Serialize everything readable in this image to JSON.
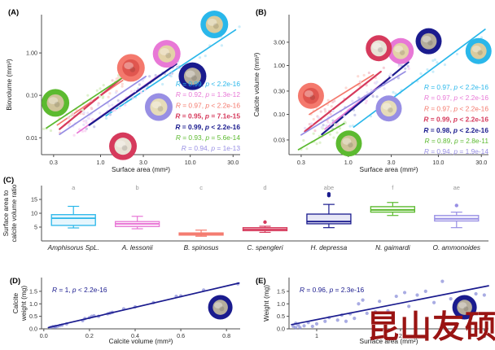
{
  "watermark": {
    "text": "昆山友硕",
    "color": "#9a1413"
  },
  "species": [
    {
      "key": "amphisorus",
      "label": "Amphisorus SpL.",
      "letter": "a",
      "color": "#2ab7ea",
      "light": "#c8ecfa",
      "inner": "#d9cb9e"
    },
    {
      "key": "lessonii",
      "label": "A. lessonii",
      "letter": "b",
      "color": "#e878d6",
      "light": "#fad9f3",
      "inner": "#e3d2a8"
    },
    {
      "key": "spinosus",
      "label": "B. spinosus",
      "letter": "c",
      "color": "#f4796d",
      "light": "#fdd9d4",
      "inner": "#e0564f"
    },
    {
      "key": "spengleri",
      "label": "C. spengleri",
      "letter": "d",
      "color": "#d63a5c",
      "light": "#f6ccd6",
      "inner": "#e8e2d5"
    },
    {
      "key": "depressa",
      "label": "H. depressa",
      "letter": "abe",
      "color": "#1a1b8e",
      "light": "#c9c9ea",
      "inner": "#b5ad9c"
    },
    {
      "key": "gaimardi",
      "label": "N. gaimardi",
      "letter": "f",
      "color": "#5cba30",
      "light": "#ddf0cb",
      "inner": "#cfc39a"
    },
    {
      "key": "ammonoides",
      "label": "O. ammonoides",
      "letter": "ae",
      "color": "#988fe4",
      "light": "#e7e3fa",
      "inner": "#e6dcb8"
    }
  ],
  "chart_data": [
    {
      "id": "A",
      "tag": "(A)",
      "type": "scatter",
      "xscale": "log",
      "yscale": "log",
      "xlabel": "Surface area (mm²)",
      "ylabel_lines": [
        "Biovolume (mm³)"
      ],
      "xticks": [
        "0.3",
        "1.0",
        "3.0",
        "10.0",
        "30.0"
      ],
      "yticks": [
        "0.01",
        "0.10",
        "1.00"
      ],
      "xlim": [
        0.22,
        36
      ],
      "ylim": [
        0.004,
        8
      ],
      "grid": false,
      "legend": "stats right side",
      "series": [
        {
          "species": "amphisorus",
          "r_label": "R = 0.99",
          "p_label": "p < 2.2e-16",
          "bold": false,
          "line": [
            [
              1.15,
              0.033
            ],
            [
              32,
              3.5
            ]
          ],
          "n": 22,
          "icon": [
            0.87,
            0.07
          ]
        },
        {
          "species": "lessonii",
          "r_label": "R = 0.92",
          "p_label": "p = 1.3e-12",
          "bold": false,
          "line": [
            [
              0.55,
              0.013
            ],
            [
              4.5,
              0.3
            ]
          ],
          "n": 20,
          "icon": [
            0.63,
            0.28
          ]
        },
        {
          "species": "spinosus",
          "r_label": "R = 0.97",
          "p_label": "p < 2.2e-16",
          "bold": false,
          "line": [
            [
              0.33,
              0.02
            ],
            [
              1.9,
              0.25
            ]
          ],
          "n": 18,
          "icon": [
            0.45,
            0.38
          ]
        },
        {
          "species": "spengleri",
          "r_label": "R = 0.95",
          "p_label": "p = 7.1e-15",
          "bold": true,
          "line": [
            [
              0.35,
              0.016
            ],
            [
              2.3,
              0.42
            ]
          ],
          "n": 18,
          "icon": [
            0.41,
            0.94
          ]
        },
        {
          "species": "depressa",
          "r_label": "R = 0.99",
          "p_label": "p < 2.2e-16",
          "bold": true,
          "line": [
            [
              0.75,
              0.02
            ],
            [
              7,
              0.55
            ]
          ],
          "n": 20,
          "icon": [
            0.76,
            0.44
          ]
        },
        {
          "species": "gaimardi",
          "r_label": "R = 0.93",
          "p_label": "p = 5.6e-14",
          "bold": false,
          "line": [
            [
              0.25,
              0.017
            ],
            [
              1.7,
              0.25
            ]
          ],
          "n": 18,
          "icon": [
            0.07,
            0.63
          ]
        },
        {
          "species": "ammonoides",
          "r_label": "R = 0.94",
          "p_label": "p = 1e-13",
          "bold": false,
          "line": [
            [
              0.35,
              0.012
            ],
            [
              3.2,
              0.28
            ]
          ],
          "n": 20,
          "icon": [
            0.59,
            0.66
          ]
        }
      ]
    },
    {
      "id": "B",
      "tag": "(B)",
      "type": "scatter",
      "xscale": "log",
      "yscale": "log",
      "xlabel": "Surface area (mm²)",
      "ylabel_lines": [
        "Calcite volume (mm³)"
      ],
      "xticks": [
        "0.3",
        "1.0",
        "3.0",
        "10.0",
        "30.0"
      ],
      "yticks": [
        "0.03",
        "0.10",
        "0.30",
        "1.00",
        "3.00"
      ],
      "xlim": [
        0.22,
        36
      ],
      "ylim": [
        0.015,
        11
      ],
      "grid": false,
      "legend": "stats right side",
      "series": [
        {
          "species": "amphisorus",
          "r_label": "R = 0.97",
          "p_label": "p < 2.2e-16",
          "bold": false,
          "line": [
            [
              1.15,
              0.055
            ],
            [
              33,
              5.5
            ]
          ],
          "n": 22,
          "icon": [
            0.95,
            0.26
          ]
        },
        {
          "species": "lessonii",
          "r_label": "R = 0.97",
          "p_label": "p < 2.2e-16",
          "bold": false,
          "line": [
            [
              0.55,
              0.05
            ],
            [
              4.5,
              1.1
            ]
          ],
          "n": 20,
          "icon": [
            0.56,
            0.26
          ]
        },
        {
          "species": "spinosus",
          "r_label": "R = 0.97",
          "p_label": "p < 2.2e-16",
          "bold": false,
          "line": [
            [
              0.37,
              0.1
            ],
            [
              1.9,
              0.65
            ]
          ],
          "n": 18,
          "icon": [
            0.11,
            0.58
          ]
        },
        {
          "species": "spengleri",
          "r_label": "R = 0.99",
          "p_label": "p < 2.2e-16",
          "bold": true,
          "line": [
            [
              0.33,
              0.045
            ],
            [
              2.3,
              0.75
            ]
          ],
          "n": 18,
          "icon": [
            0.45,
            0.24
          ]
        },
        {
          "species": "depressa",
          "r_label": "R = 0.98",
          "p_label": "p < 2.2e-16",
          "bold": true,
          "line": [
            [
              0.51,
              0.039
            ],
            [
              4.65,
              1.17
            ]
          ],
          "n": 20,
          "icon": [
            0.7,
            0.19
          ]
        },
        {
          "species": "gaimardi",
          "r_label": "R = 0.89",
          "p_label": "p = 2.8e-11",
          "bold": false,
          "line": [
            [
              0.28,
              0.019
            ],
            [
              0.9,
              0.065
            ]
          ],
          "n": 18,
          "icon": [
            0.3,
            0.92
          ]
        },
        {
          "species": "ammonoides",
          "r_label": "R = 0.94",
          "p_label": "p = 1.9e-14",
          "bold": false,
          "line": [
            [
              0.3,
              0.038
            ],
            [
              4.3,
              0.75
            ]
          ],
          "n": 20,
          "icon": [
            0.5,
            0.67
          ]
        }
      ]
    },
    {
      "id": "C",
      "tag": "(C)",
      "type": "boxplot",
      "ylabel_lines": [
        "Surface area to",
        "calcite volume ratio"
      ],
      "yticks": [
        5,
        10,
        15
      ],
      "ylim": [
        0,
        20
      ],
      "grid": false,
      "boxes": [
        {
          "species": "amphisorus",
          "whislo": 4.7,
          "q1": 5.6,
          "med": 8.2,
          "q3": 9.5,
          "whishi": 12.5,
          "outliers": []
        },
        {
          "species": "lessonii",
          "whislo": 4.4,
          "q1": 5.2,
          "med": 6.2,
          "q3": 7.0,
          "whishi": 8.9,
          "outliers": []
        },
        {
          "species": "spinosus",
          "whislo": 1.7,
          "q1": 2.1,
          "med": 2.5,
          "q3": 2.9,
          "whishi": 3.9,
          "outliers": []
        },
        {
          "species": "spengleri",
          "whislo": 3.1,
          "q1": 3.7,
          "med": 4.2,
          "q3": 4.8,
          "whishi": 5.3,
          "outliers": [
            6.8
          ]
        },
        {
          "species": "depressa",
          "whislo": 4.8,
          "q1": 6.2,
          "med": 7.0,
          "q3": 9.7,
          "whishi": 13.2,
          "outliers": [
            16.4,
            17.0
          ]
        },
        {
          "species": "gaimardi",
          "whislo": 9.2,
          "q1": 10.4,
          "med": 11.2,
          "q3": 12.4,
          "whishi": 13.9,
          "outliers": []
        },
        {
          "species": "ammonoides",
          "whislo": 4.8,
          "q1": 7.2,
          "med": 8.0,
          "q3": 9.2,
          "whishi": 10.4,
          "outliers": [
            12.8
          ]
        }
      ]
    },
    {
      "id": "D",
      "tag": "(D)",
      "type": "scatter",
      "xscale": "linear",
      "yscale": "linear",
      "xlabel": "Calcite volume (mm³)",
      "ylabel_lines": [
        "Calcite",
        "weight (mg)"
      ],
      "xticks": [
        "0.0",
        "0.2",
        "0.4",
        "0.6",
        "0.8"
      ],
      "yticks": [
        "0.0",
        "0.5",
        "1.0",
        "1.5"
      ],
      "xlim": [
        -0.01,
        0.86
      ],
      "ylim": [
        0,
        2.05
      ],
      "grid": false,
      "stat": {
        "r_label": "R = 1",
        "p_label": "p < 2.2e-16"
      },
      "series": [
        {
          "species": "depressa",
          "line": [
            [
              0.02,
              0.05
            ],
            [
              0.855,
              1.83
            ]
          ],
          "icon": [
            0.9,
            0.58
          ],
          "points": [
            [
              0.03,
              0.06
            ],
            [
              0.04,
              0.09
            ],
            [
              0.05,
              0.1
            ],
            [
              0.05,
              0.07
            ],
            [
              0.06,
              0.1
            ],
            [
              0.07,
              0.13
            ],
            [
              0.08,
              0.15
            ],
            [
              0.1,
              0.2
            ],
            [
              0.17,
              0.33
            ],
            [
              0.18,
              0.41
            ],
            [
              0.2,
              0.45
            ],
            [
              0.21,
              0.5
            ],
            [
              0.22,
              0.52
            ],
            [
              0.24,
              0.5
            ],
            [
              0.28,
              0.6
            ],
            [
              0.29,
              0.63
            ],
            [
              0.3,
              0.66
            ],
            [
              0.35,
              0.8
            ],
            [
              0.4,
              0.88
            ],
            [
              0.48,
              1.05
            ],
            [
              0.58,
              1.3
            ],
            [
              0.6,
              1.32
            ],
            [
              0.7,
              1.55
            ],
            [
              0.85,
              1.8
            ]
          ]
        }
      ]
    },
    {
      "id": "E",
      "tag": "(E)",
      "type": "scatter",
      "xscale": "linear",
      "yscale": "linear",
      "xlabel": "Surface area (mm²)",
      "ylabel_lines": [
        "Weight (mg)"
      ],
      "xticks": [
        "1",
        "2",
        "3"
      ],
      "yticks": [
        "0.0",
        "0.5",
        "1.0",
        "1.5"
      ],
      "xlim": [
        0.67,
        3.05
      ],
      "ylim": [
        0,
        2.05
      ],
      "grid": false,
      "stat": {
        "r_label": "R = 0.96",
        "p_label": "p = 2.3e-16"
      },
      "series": [
        {
          "species": "depressa",
          "line": [
            [
              0.7,
              0.17
            ],
            [
              3.05,
              1.72
            ]
          ],
          "icon": [
            0.88,
            0.58
          ],
          "points": [
            [
              0.72,
              0.1
            ],
            [
              0.75,
              0.05
            ],
            [
              0.75,
              0.22
            ],
            [
              0.78,
              0.15
            ],
            [
              0.8,
              0.05
            ],
            [
              0.85,
              0.12
            ],
            [
              0.9,
              0.25
            ],
            [
              0.95,
              0.1
            ],
            [
              1.0,
              0.2
            ],
            [
              1.1,
              0.3
            ],
            [
              1.15,
              0.45
            ],
            [
              1.25,
              0.35
            ],
            [
              1.3,
              0.55
            ],
            [
              1.35,
              0.3
            ],
            [
              1.4,
              0.6
            ],
            [
              1.45,
              0.42
            ],
            [
              1.5,
              1.0
            ],
            [
              1.55,
              1.15
            ],
            [
              1.6,
              0.62
            ],
            [
              1.7,
              0.68
            ],
            [
              1.75,
              1.1
            ],
            [
              1.85,
              0.72
            ],
            [
              1.95,
              1.3
            ],
            [
              2.05,
              1.45
            ],
            [
              2.1,
              0.9
            ],
            [
              2.2,
              1.35
            ],
            [
              2.3,
              1.5
            ],
            [
              2.4,
              1.05
            ],
            [
              2.5,
              1.9
            ],
            [
              2.6,
              1.2
            ],
            [
              2.75,
              1.05
            ],
            [
              2.9,
              1.4
            ],
            [
              3.0,
              1.35
            ]
          ]
        }
      ]
    }
  ]
}
